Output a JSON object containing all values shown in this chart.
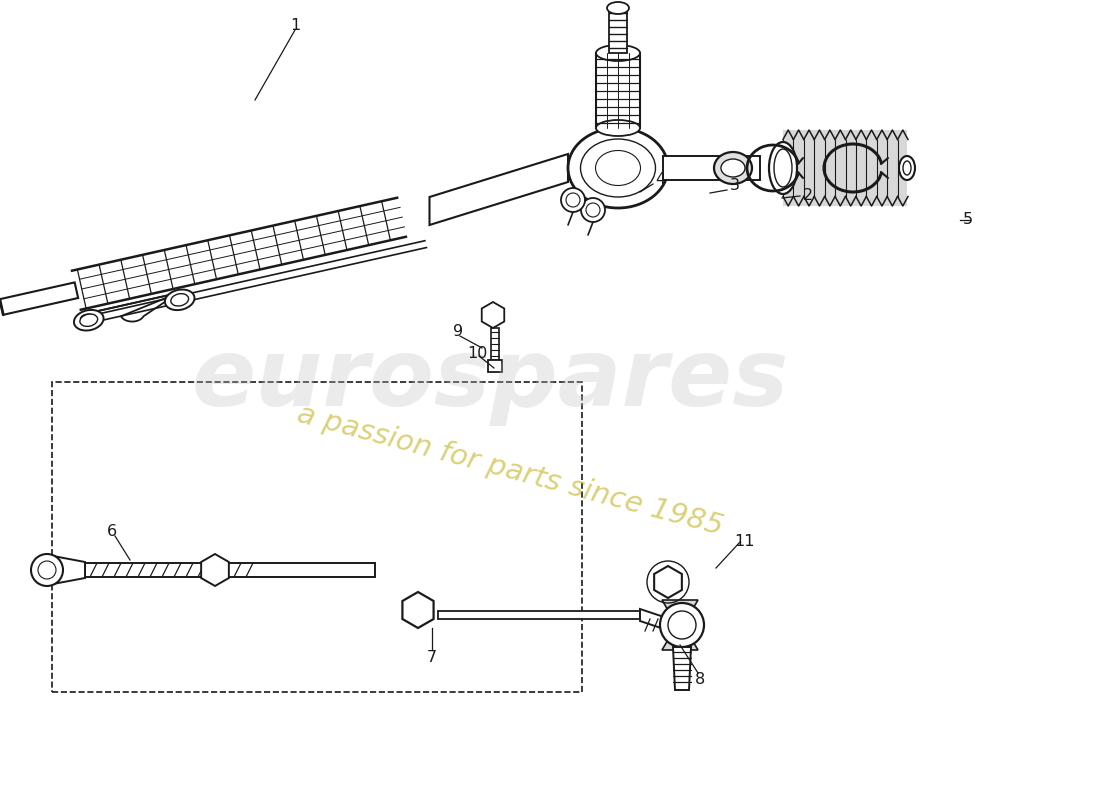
{
  "bg_color": "#ffffff",
  "line_color": "#1a1a1a",
  "watermark_gray": "#c0c0c0",
  "watermark_yellow": "#c8b830"
}
